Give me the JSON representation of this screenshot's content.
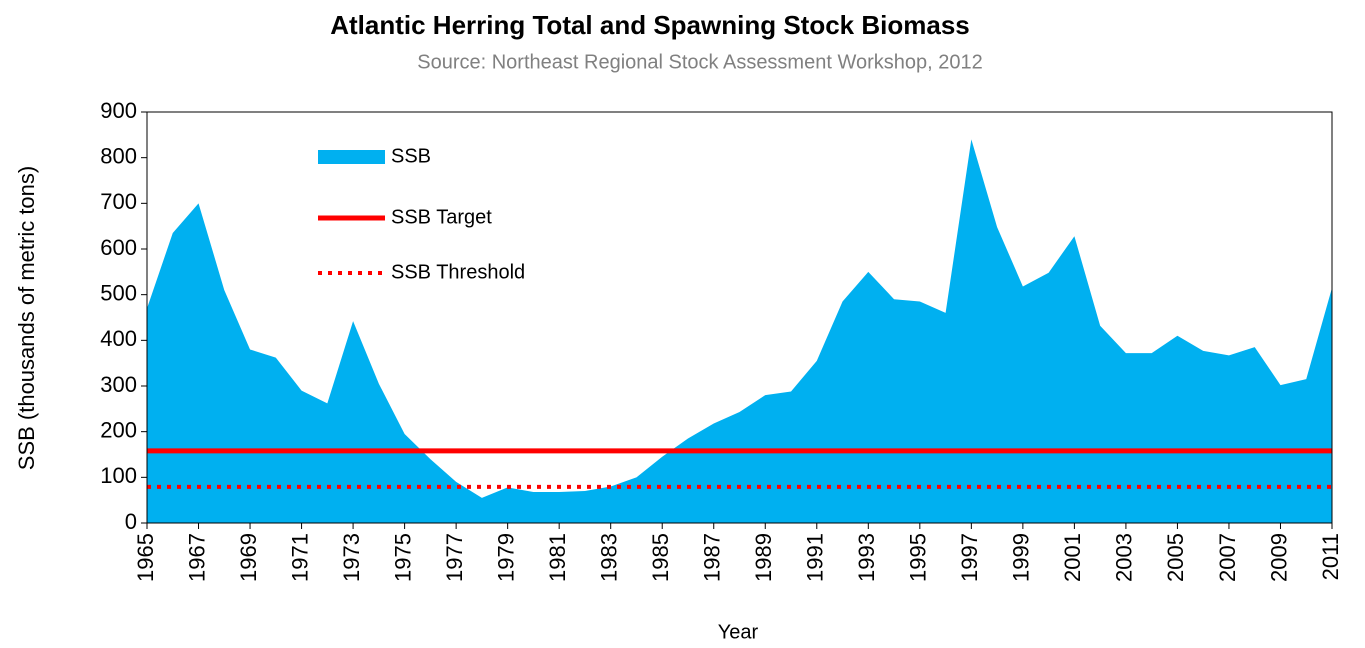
{
  "chart_data": {
    "type": "area",
    "title": "Atlantic Herring Total and Spawning Stock Biomass",
    "subtitle": "Source: Northeast Regional Stock Assessment Workshop, 2012",
    "x_label": "Year",
    "y_label": "SSB (thousands of metric tons)",
    "x": [
      1965,
      1966,
      1967,
      1968,
      1969,
      1970,
      1971,
      1972,
      1973,
      1974,
      1975,
      1976,
      1977,
      1978,
      1979,
      1980,
      1981,
      1982,
      1983,
      1984,
      1985,
      1986,
      1987,
      1988,
      1989,
      1990,
      1991,
      1992,
      1993,
      1994,
      1995,
      1996,
      1997,
      1998,
      1999,
      2000,
      2001,
      2002,
      2003,
      2004,
      2005,
      2006,
      2007,
      2008,
      2009,
      2010,
      2011
    ],
    "series": [
      {
        "name": "SSB",
        "color": "#00b0f0",
        "values": [
          470,
          635,
          700,
          510,
          380,
          362,
          290,
          262,
          442,
          305,
          195,
          140,
          90,
          55,
          78,
          68,
          68,
          70,
          80,
          100,
          145,
          185,
          218,
          243,
          280,
          288,
          355,
          485,
          550,
          490,
          485,
          460,
          840,
          648,
          518,
          548,
          628,
          432,
          372,
          372,
          410,
          377,
          367,
          385,
          302,
          315,
          515
        ]
      }
    ],
    "reference_lines": [
      {
        "name": "SSB Target",
        "value": 158,
        "color": "#ff0000",
        "style": "solid"
      },
      {
        "name": "SSB Threshold",
        "value": 79,
        "color": "#ff0000",
        "style": "dotted"
      }
    ],
    "xlim": [
      1965,
      2011
    ],
    "xticks": [
      1965,
      1967,
      1969,
      1971,
      1973,
      1975,
      1977,
      1979,
      1981,
      1983,
      1985,
      1987,
      1989,
      1991,
      1993,
      1995,
      1997,
      1999,
      2001,
      2003,
      2005,
      2007,
      2009,
      2011
    ],
    "ylim": [
      0,
      900
    ],
    "yticks": [
      0,
      100,
      200,
      300,
      400,
      500,
      600,
      700,
      800,
      900
    ],
    "grid": false
  }
}
